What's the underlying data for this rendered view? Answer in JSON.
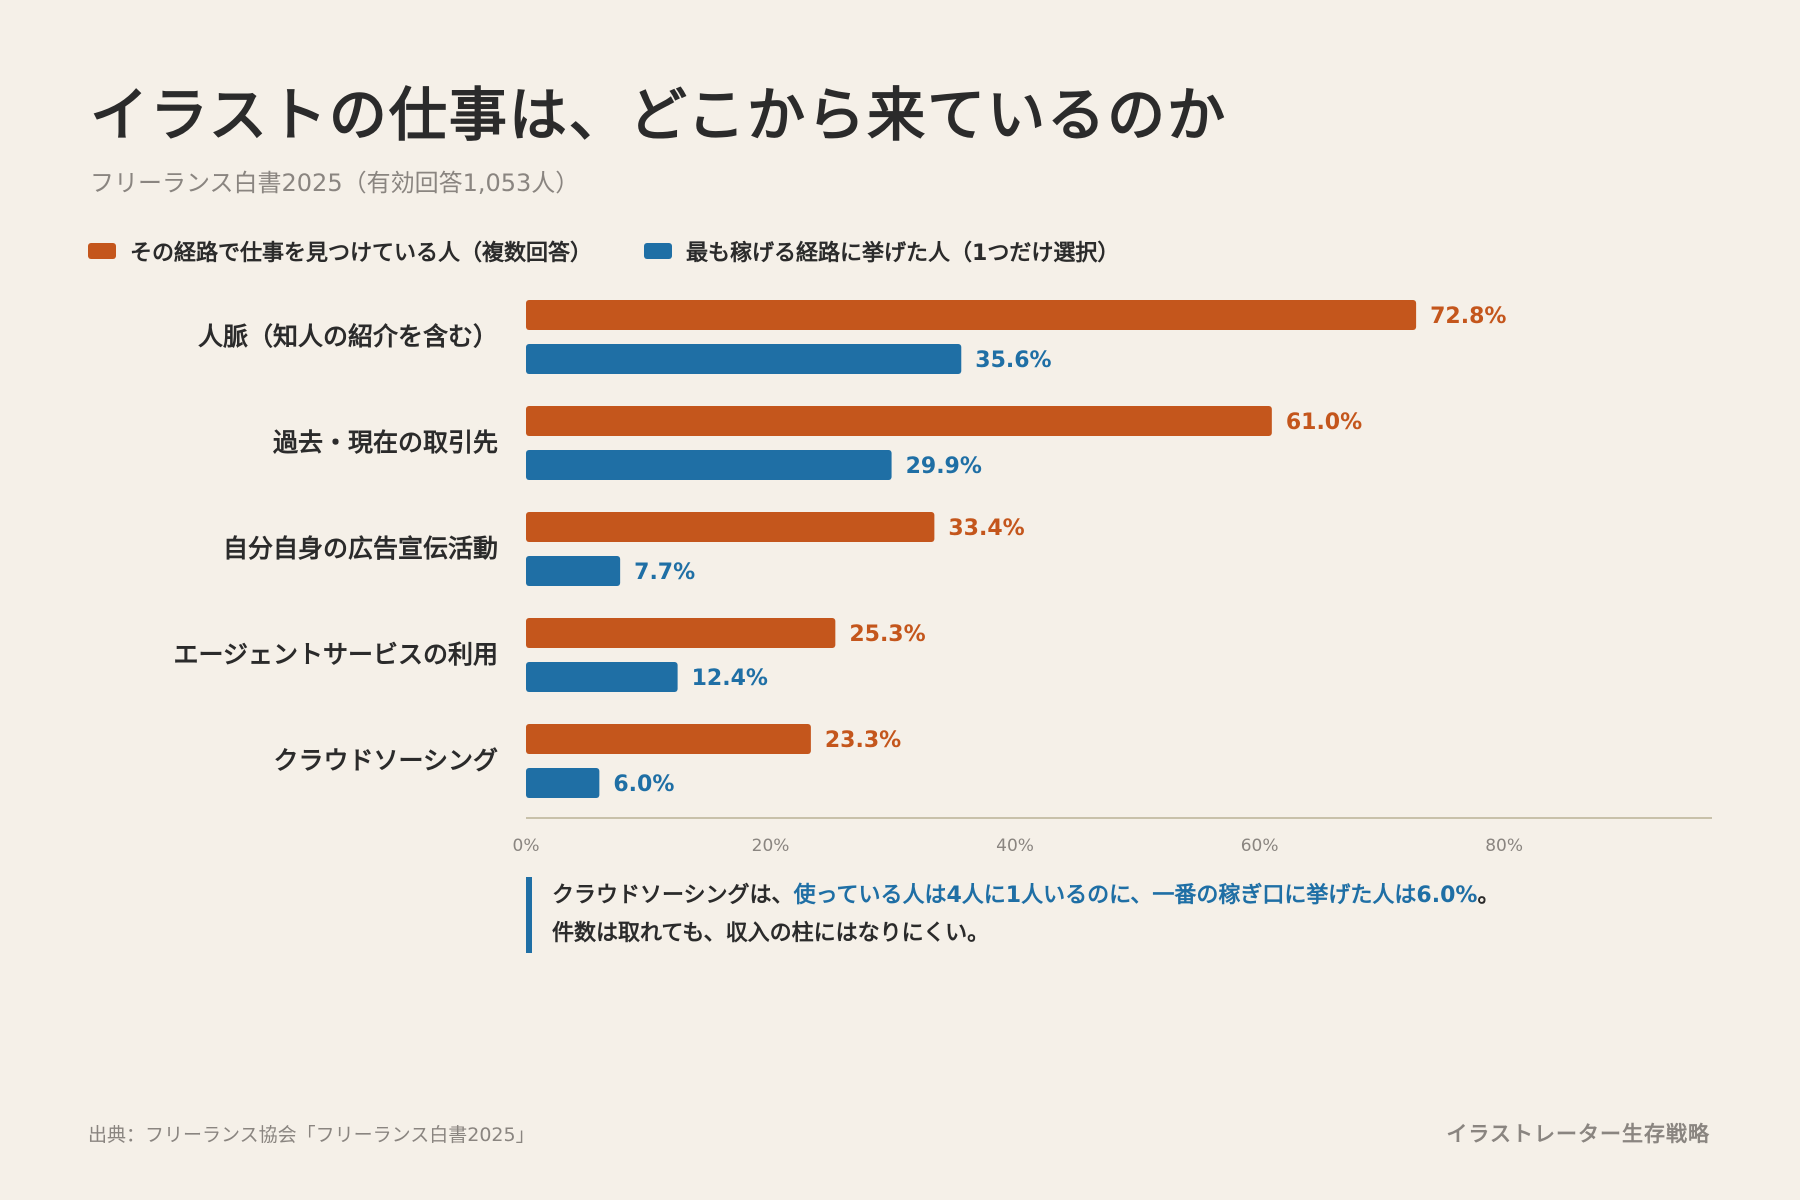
{
  "header": {
    "title": "イラストの仕事は、どこから来ているのか",
    "subtitle": "フリーランス白書2025（有効回答1,053人）"
  },
  "legend": {
    "series_a": "その経路で仕事を見つけている人（複数回答）",
    "series_b": "最も稼げる経路に挙げた人（1つだけ選択）"
  },
  "colors": {
    "series_a": "#c4561c",
    "series_b": "#1f6fa5",
    "axis": "#c8c1aa",
    "tick": "#8a8580"
  },
  "chart_data": {
    "type": "bar",
    "orientation": "horizontal",
    "categories": [
      "人脈（知人の紹介を含む）",
      "過去・現在の取引先",
      "自分自身の広告宣伝活動",
      "エージェントサービスの利用",
      "クラウドソーシング"
    ],
    "series": [
      {
        "name": "その経路で仕事を見つけている人（複数回答）",
        "values": [
          72.8,
          61.0,
          33.4,
          25.3,
          23.3
        ],
        "labels": [
          "72.8%",
          "61.0%",
          "33.4%",
          "25.3%",
          "23.3%"
        ]
      },
      {
        "name": "最も稼げる経路に挙げた人（1つだけ選択）",
        "values": [
          35.6,
          29.9,
          7.7,
          12.4,
          6.0
        ],
        "labels": [
          "35.6%",
          "29.9%",
          "7.7%",
          "12.4%",
          "6.0%"
        ]
      }
    ],
    "xlim": [
      0,
      97
    ],
    "xticks": [
      0,
      20,
      40,
      60,
      80
    ],
    "xtick_labels": [
      "0%",
      "20%",
      "40%",
      "60%",
      "80%"
    ],
    "grid": false,
    "legend_position": "top-left"
  },
  "note": {
    "line1_a": "クラウドソーシングは、",
    "line1_b": "使っている人は4人に1人いるのに、一番の稼ぎ口に挙げた人は6.0%",
    "line1_c": "。",
    "line2": "件数は取れても、収入の柱にはなりにくい。"
  },
  "footer": {
    "source": "出典：フリーランス協会「フリーランス白書2025」",
    "brand": "イラストレーター生存戦略"
  }
}
